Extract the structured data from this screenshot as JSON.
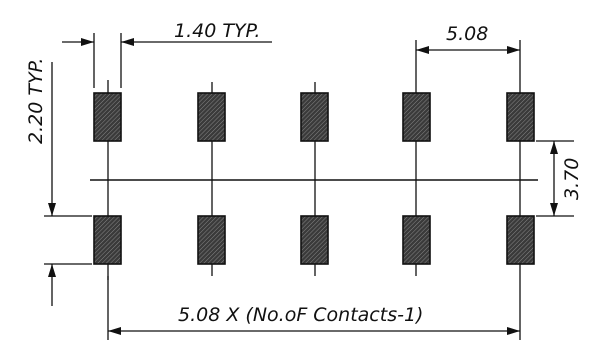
{
  "drawing": {
    "line_color": "#111111",
    "pad_fill": "#3a3a3a",
    "background": "#ffffff",
    "dimensions": {
      "pad_width": "1.40 TYP.",
      "pitch": "5.08",
      "pad_length": "2.20 TYP.",
      "row_spacing": "3.70",
      "overall_length": "5.08 X (No.oF Contacts-1)"
    },
    "pads": {
      "columns": 5,
      "rows": 2
    }
  }
}
